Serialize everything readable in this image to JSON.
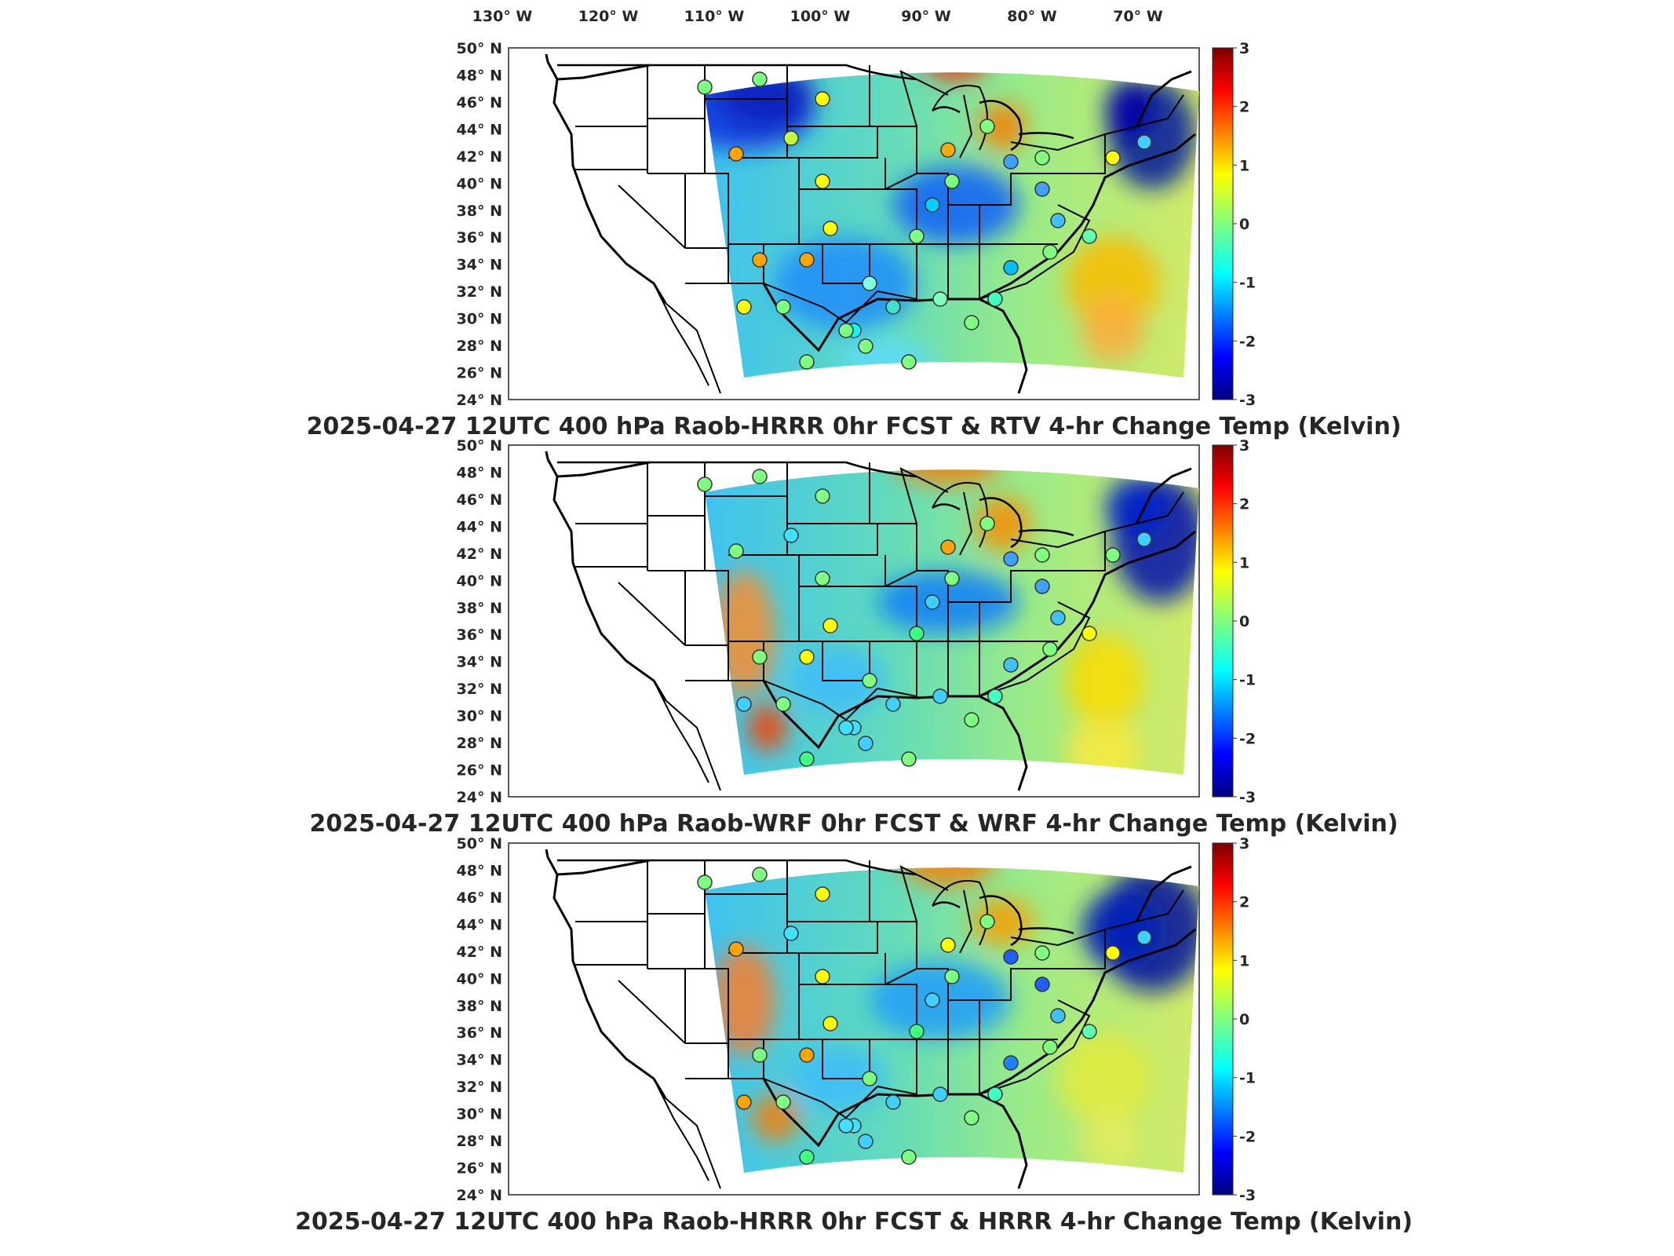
{
  "figure": {
    "lon_labels": [
      "130° W",
      "120° W",
      "110° W",
      "100° W",
      "90° W",
      "80° W",
      "70° W"
    ],
    "lat_labels": [
      "50° N",
      "48° N",
      "46° N",
      "44° N",
      "42° N",
      "40° N",
      "38° N",
      "36° N",
      "34° N",
      "32° N",
      "30° N",
      "28° N",
      "26° N",
      "24° N"
    ],
    "colorbar": {
      "ticks": [
        "3",
        "2",
        "1",
        "0",
        "-1",
        "-2",
        "-3"
      ],
      "range": [
        -3,
        3
      ],
      "colormap": "jet"
    },
    "panels": [
      {
        "title": "2025-04-27 12UTC 400 hPa Raob-HRRR 0hr FCST & RTV 4-hr Change Temp (Kelvin)"
      },
      {
        "title": "2025-04-27 12UTC 400 hPa Raob-WRF 0hr FCST & WRF 4-hr Change Temp (Kelvin)"
      },
      {
        "title": "2025-04-27 12UTC 400 hPa Raob-HRRR 0hr FCST & HRRR 4-hr Change Temp (Kelvin)"
      }
    ]
  },
  "colors": {
    "map_outline": "#000000",
    "background": "#ffffff"
  }
}
